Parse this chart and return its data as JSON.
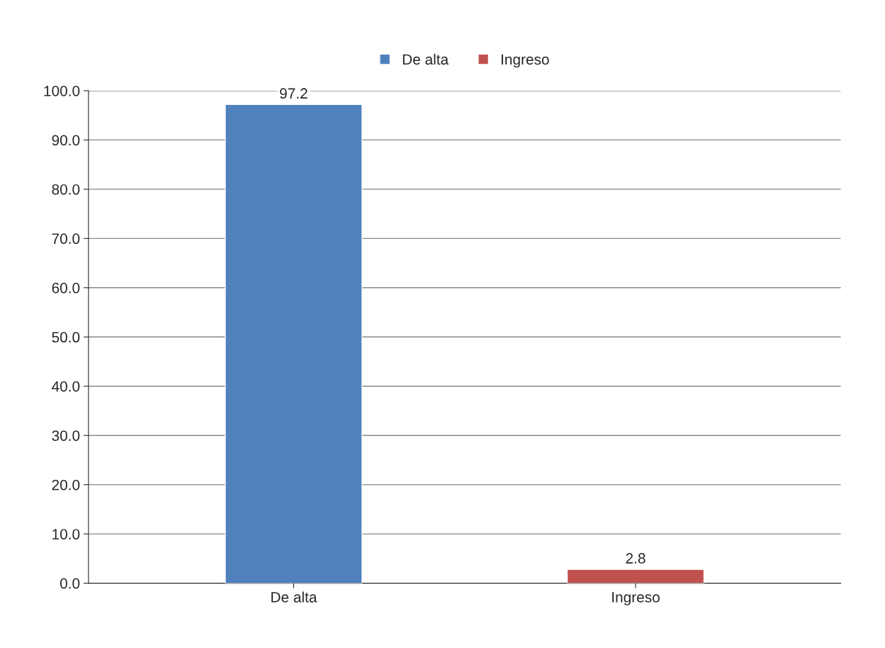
{
  "chart_data": {
    "type": "bar",
    "categories": [
      "De alta",
      "Ingreso"
    ],
    "series": [
      {
        "name": "De alta",
        "color": "#4f81bd",
        "values": [
          97.2,
          null
        ]
      },
      {
        "name": "Ingreso",
        "color": "#c0504d",
        "values": [
          null,
          2.8
        ]
      }
    ],
    "ylim": [
      0,
      100
    ],
    "yticks": [
      {
        "value": 0,
        "label": "0.0"
      },
      {
        "value": 10,
        "label": "10.0"
      },
      {
        "value": 20,
        "label": "20.0"
      },
      {
        "value": 30,
        "label": "30.0"
      },
      {
        "value": 40,
        "label": "40.0"
      },
      {
        "value": 50,
        "label": "50.0"
      },
      {
        "value": 60,
        "label": "60.0"
      },
      {
        "value": 70,
        "label": "70.0"
      },
      {
        "value": 80,
        "label": "80.0"
      },
      {
        "value": 90,
        "label": "90.0"
      },
      {
        "value": 100,
        "label": "100.0"
      }
    ],
    "grid": "y",
    "legend": "top",
    "data_labels": true
  }
}
